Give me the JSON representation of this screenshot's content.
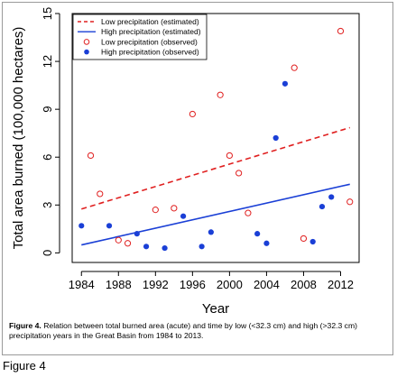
{
  "figure_label": "Figure 4",
  "caption": {
    "lead": "Figure 4.",
    "text": " Relation between total burned area (acute) and time by low (<32.3 cm) and high (>32.3 cm) precipitation years in the Great Basin from 1984 to 2013."
  },
  "chart_data": {
    "type": "scatter",
    "title": "",
    "xlabel": "Year",
    "ylabel": "Total area burned (100,000 hectares)",
    "xlim": [
      1983,
      2014
    ],
    "ylim": [
      -0.6,
      15
    ],
    "xticks": [
      1984,
      1988,
      1992,
      1996,
      2000,
      2004,
      2008,
      2012
    ],
    "yticks": [
      0,
      3,
      6,
      9,
      12,
      15
    ],
    "legend_position": "top-left",
    "series": [
      {
        "name": "Low precipitation (estimated)",
        "kind": "line",
        "style": "dashed",
        "color": "#e02020",
        "x": [
          1984,
          2013
        ],
        "y": [
          2.75,
          7.85
        ]
      },
      {
        "name": "High precipitation (estimated)",
        "kind": "line",
        "style": "solid",
        "color": "#1a3fd6",
        "x": [
          1984,
          2013
        ],
        "y": [
          0.5,
          4.3
        ]
      },
      {
        "name": "Low precipitation (observed)",
        "kind": "points",
        "marker": "open-circle",
        "color": "#e02020",
        "x": [
          1985,
          1986,
          1988,
          1989,
          1992,
          1994,
          1996,
          1999,
          2000,
          2001,
          2002,
          2007,
          2008,
          2012,
          2013
        ],
        "y": [
          6.1,
          3.7,
          0.8,
          0.6,
          2.7,
          2.8,
          8.7,
          9.9,
          6.1,
          5.0,
          2.5,
          11.6,
          0.9,
          13.9,
          3.2
        ]
      },
      {
        "name": "High precipitation (observed)",
        "kind": "points",
        "marker": "filled-circle",
        "color": "#1a3fd6",
        "x": [
          1984,
          1987,
          1990,
          1991,
          1993,
          1995,
          1997,
          1998,
          2003,
          2004,
          2005,
          2006,
          2009,
          2010,
          2011
        ],
        "y": [
          1.7,
          1.7,
          1.2,
          0.4,
          0.3,
          2.3,
          0.4,
          1.3,
          1.2,
          0.6,
          7.2,
          10.6,
          0.7,
          2.9,
          3.5
        ]
      }
    ]
  }
}
